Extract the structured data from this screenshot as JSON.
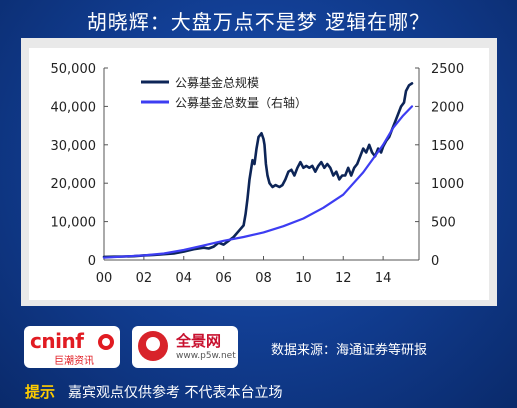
{
  "page": {
    "title": "胡晓辉：大盘万点不是梦   逻辑在哪？",
    "source": "数据来源：海通证券等研报",
    "tip_label": "提示",
    "tip_text": "嘉宾观点仅供参考  不代表本台立场",
    "logos": {
      "cninf_main": "cninf",
      "cninf_sub": "巨潮资讯",
      "p5w_main": "全景网",
      "p5w_sub": "www.p5w.net"
    }
  },
  "colors": {
    "background": "#123f95",
    "series_scale": "#0d2557",
    "series_count": "#3d3df2",
    "tip_label": "#ffcc00"
  },
  "chart_data": {
    "type": "line",
    "title": "",
    "x_ticks": [
      "00",
      "02",
      "04",
      "06",
      "08",
      "10",
      "12",
      "14"
    ],
    "x_range": [
      2000,
      2015.8
    ],
    "y_left_ticks": [
      "0",
      "10,000",
      "20,000",
      "30,000",
      "40,000",
      "50,000"
    ],
    "y_left_range": [
      0,
      50000
    ],
    "y_right_ticks": [
      "0",
      "500",
      "1000",
      "1500",
      "2000",
      "2500"
    ],
    "y_right_range": [
      0,
      2500
    ],
    "legend_position": "top-left",
    "grid": false,
    "series": [
      {
        "name": "公募基金总规模",
        "axis": "left",
        "points": [
          [
            2000.0,
            800
          ],
          [
            2000.5,
            850
          ],
          [
            2001.0,
            900
          ],
          [
            2001.5,
            1000
          ],
          [
            2002.0,
            1200
          ],
          [
            2002.5,
            1300
          ],
          [
            2003.0,
            1500
          ],
          [
            2003.5,
            1700
          ],
          [
            2004.0,
            2200
          ],
          [
            2004.5,
            2800
          ],
          [
            2005.0,
            3200
          ],
          [
            2005.25,
            3000
          ],
          [
            2005.5,
            3500
          ],
          [
            2005.75,
            4500
          ],
          [
            2006.0,
            4000
          ],
          [
            2006.25,
            5000
          ],
          [
            2006.5,
            6000
          ],
          [
            2006.75,
            7500
          ],
          [
            2007.0,
            9000
          ],
          [
            2007.1,
            12000
          ],
          [
            2007.2,
            16000
          ],
          [
            2007.3,
            21000
          ],
          [
            2007.45,
            26000
          ],
          [
            2007.55,
            25000
          ],
          [
            2007.65,
            29000
          ],
          [
            2007.75,
            32000
          ],
          [
            2007.9,
            33000
          ],
          [
            2008.0,
            31500
          ],
          [
            2008.05,
            30000
          ],
          [
            2008.12,
            25000
          ],
          [
            2008.2,
            22000
          ],
          [
            2008.3,
            20000
          ],
          [
            2008.45,
            19000
          ],
          [
            2008.6,
            19500
          ],
          [
            2008.8,
            19000
          ],
          [
            2008.95,
            19500
          ],
          [
            2009.1,
            21000
          ],
          [
            2009.25,
            23000
          ],
          [
            2009.4,
            23500
          ],
          [
            2009.55,
            22000
          ],
          [
            2009.7,
            24000
          ],
          [
            2009.85,
            25500
          ],
          [
            2010.0,
            24000
          ],
          [
            2010.15,
            24500
          ],
          [
            2010.3,
            24000
          ],
          [
            2010.45,
            24500
          ],
          [
            2010.6,
            23000
          ],
          [
            2010.75,
            24500
          ],
          [
            2010.9,
            25500
          ],
          [
            2011.05,
            24000
          ],
          [
            2011.2,
            25000
          ],
          [
            2011.35,
            24000
          ],
          [
            2011.5,
            22000
          ],
          [
            2011.65,
            23000
          ],
          [
            2011.8,
            21000
          ],
          [
            2011.95,
            22000
          ],
          [
            2012.1,
            22000
          ],
          [
            2012.25,
            24000
          ],
          [
            2012.4,
            22000
          ],
          [
            2012.55,
            24000
          ],
          [
            2012.7,
            25000
          ],
          [
            2012.85,
            27000
          ],
          [
            2013.0,
            29000
          ],
          [
            2013.15,
            28000
          ],
          [
            2013.3,
            30000
          ],
          [
            2013.45,
            28000
          ],
          [
            2013.6,
            27000
          ],
          [
            2013.75,
            29000
          ],
          [
            2013.9,
            28000
          ],
          [
            2014.0,
            29500
          ],
          [
            2014.15,
            31000
          ],
          [
            2014.3,
            32000
          ],
          [
            2014.45,
            34000
          ],
          [
            2014.6,
            36000
          ],
          [
            2014.75,
            38000
          ],
          [
            2014.9,
            40000
          ],
          [
            2015.05,
            41000
          ],
          [
            2015.15,
            44000
          ],
          [
            2015.3,
            45500
          ],
          [
            2015.45,
            46000
          ]
        ]
      },
      {
        "name": "公募基金总数量（右轴）",
        "axis": "right",
        "points": [
          [
            2000.0,
            30
          ],
          [
            2001.0,
            45
          ],
          [
            2002.0,
            60
          ],
          [
            2003.0,
            85
          ],
          [
            2004.0,
            130
          ],
          [
            2005.0,
            190
          ],
          [
            2006.0,
            250
          ],
          [
            2007.0,
            300
          ],
          [
            2008.0,
            360
          ],
          [
            2009.0,
            440
          ],
          [
            2010.0,
            540
          ],
          [
            2011.0,
            680
          ],
          [
            2012.0,
            850
          ],
          [
            2013.0,
            1140
          ],
          [
            2014.0,
            1500
          ],
          [
            2014.5,
            1720
          ],
          [
            2015.0,
            1880
          ],
          [
            2015.45,
            2000
          ]
        ]
      }
    ]
  }
}
